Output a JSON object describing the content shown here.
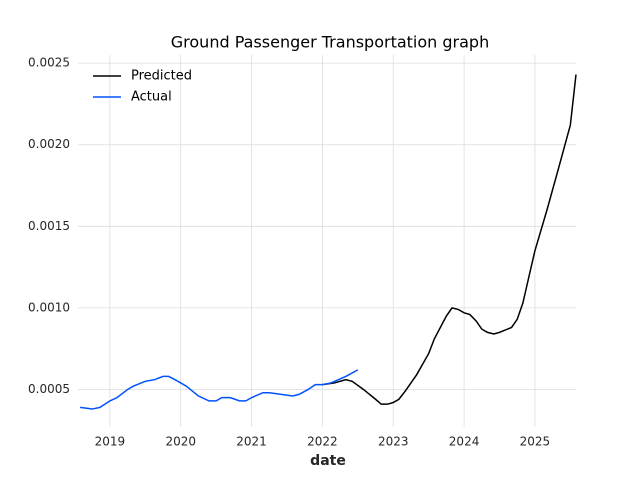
{
  "chart_data": {
    "type": "line",
    "title": "Ground Passenger Transportation graph",
    "x_label": "date",
    "xlim": [
      2018.55,
      2025.58
    ],
    "xticks": [
      2019,
      2020,
      2021,
      2022,
      2023,
      2024,
      2025
    ],
    "ylim": [
      0.00027,
      0.00255
    ],
    "yticks": [
      0.0005,
      {
        "value": 0.001,
        "label": "0.0010"
      },
      0.0015,
      {
        "value": 0.002,
        "label": "0.0020"
      },
      0.0025
    ],
    "grid": true,
    "legend": "upper left",
    "series": [
      {
        "name": "Predicted",
        "color": "#000000",
        "x": [
          2022.0,
          2022.17,
          2022.33,
          2022.42,
          2022.58,
          2022.75,
          2022.83,
          2022.92,
          2023.0,
          2023.08,
          2023.17,
          2023.25,
          2023.33,
          2023.5,
          2023.58,
          2023.75,
          2023.83,
          2023.92,
          2024.0,
          2024.08,
          2024.17,
          2024.25,
          2024.33,
          2024.42,
          2024.5,
          2024.67,
          2024.75,
          2024.83,
          2024.92,
          2025.0,
          2025.17,
          2025.33,
          2025.5,
          2025.58
        ],
        "values": [
          0.00053,
          0.00054,
          0.00056,
          0.00055,
          0.0005,
          0.00044,
          0.00041,
          0.00041,
          0.00042,
          0.00044,
          0.00049,
          0.00054,
          0.00059,
          0.00072,
          0.00081,
          0.00095,
          0.001,
          0.00099,
          0.00097,
          0.00096,
          0.00092,
          0.00087,
          0.00085,
          0.00084,
          0.00085,
          0.00088,
          0.00093,
          0.00103,
          0.0012,
          0.00135,
          0.0016,
          0.00185,
          0.00212,
          0.00243
        ]
      },
      {
        "name": "Actual",
        "color": "#0052ff",
        "x": [
          2018.58,
          2018.75,
          2018.86,
          2019.0,
          2019.1,
          2019.25,
          2019.33,
          2019.5,
          2019.63,
          2019.75,
          2019.83,
          2019.92,
          2020.0,
          2020.08,
          2020.25,
          2020.4,
          2020.5,
          2020.58,
          2020.7,
          2020.83,
          2020.92,
          2021.0,
          2021.16,
          2021.25,
          2021.42,
          2021.58,
          2021.67,
          2021.8,
          2021.9,
          2022.0,
          2022.12,
          2022.33,
          2022.5
        ],
        "values": [
          0.00039,
          0.00038,
          0.00039,
          0.00043,
          0.00045,
          0.0005,
          0.00052,
          0.00055,
          0.00056,
          0.00058,
          0.00058,
          0.00056,
          0.00054,
          0.00052,
          0.00046,
          0.00043,
          0.00043,
          0.00045,
          0.00045,
          0.00043,
          0.00043,
          0.00045,
          0.00048,
          0.00048,
          0.00047,
          0.00046,
          0.00047,
          0.0005,
          0.00053,
          0.00053,
          0.00054,
          0.00058,
          0.00062
        ]
      }
    ]
  }
}
